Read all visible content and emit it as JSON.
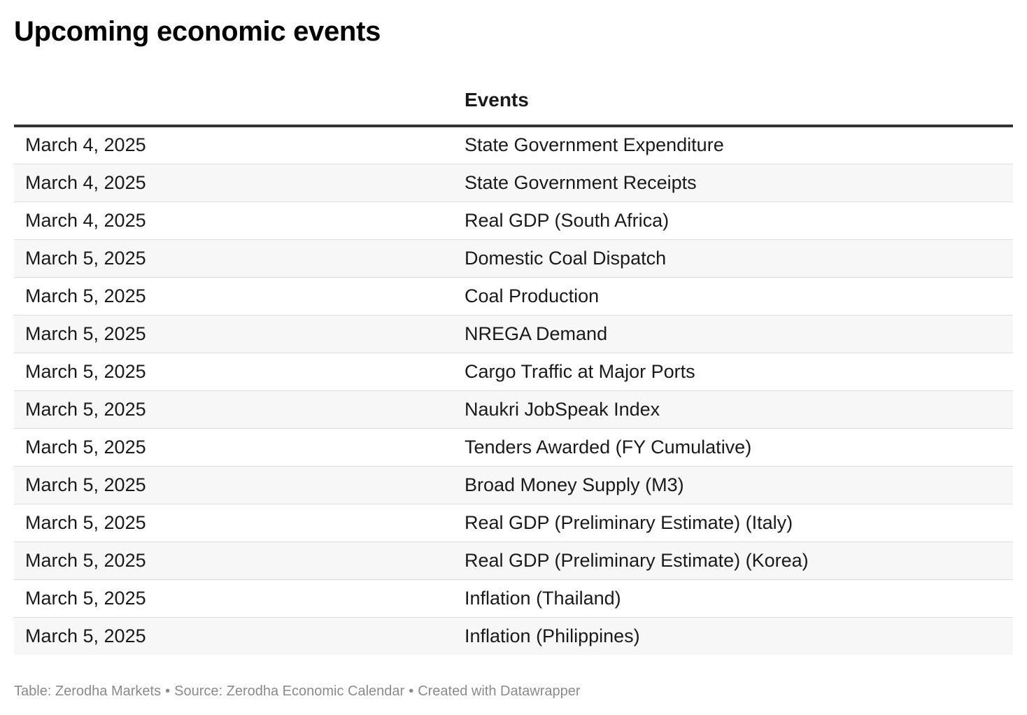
{
  "title": "Upcoming economic events",
  "table": {
    "columns": [
      "",
      "Events"
    ],
    "rows": [
      [
        "March 4, 2025",
        "State Government Expenditure"
      ],
      [
        "March 4, 2025",
        "State Government Receipts"
      ],
      [
        "March 4, 2025",
        "Real GDP (South Africa)"
      ],
      [
        "March 5, 2025",
        "Domestic Coal Dispatch"
      ],
      [
        "March 5, 2025",
        "Coal Production"
      ],
      [
        "March 5, 2025",
        "NREGA Demand"
      ],
      [
        "March 5, 2025",
        "Cargo Traffic at Major Ports"
      ],
      [
        "March 5, 2025",
        "Naukri JobSpeak Index"
      ],
      [
        "March 5, 2025",
        "Tenders Awarded (FY Cumulative)"
      ],
      [
        "March 5, 2025",
        "Broad Money Supply (M3)"
      ],
      [
        "March 5, 2025",
        "Real GDP (Preliminary Estimate) (Italy)"
      ],
      [
        "March 5, 2025",
        "Real GDP (Preliminary Estimate) (Korea)"
      ],
      [
        "March 5, 2025",
        "Inflation (Thailand)"
      ],
      [
        "March 5, 2025",
        "Inflation (Philippines)"
      ]
    ]
  },
  "footer": {
    "table_credit": "Table: Zerodha Markets",
    "separator": "•",
    "source": "Source: Zerodha Economic Calendar",
    "created_with": "Created with Datawrapper"
  },
  "colors": {
    "text": "#1a1a1a",
    "header_rule": "#333333",
    "row_divider": "#dddddd",
    "row_stripe": "#f7f7f7",
    "footer_text": "#8a8a8a"
  }
}
